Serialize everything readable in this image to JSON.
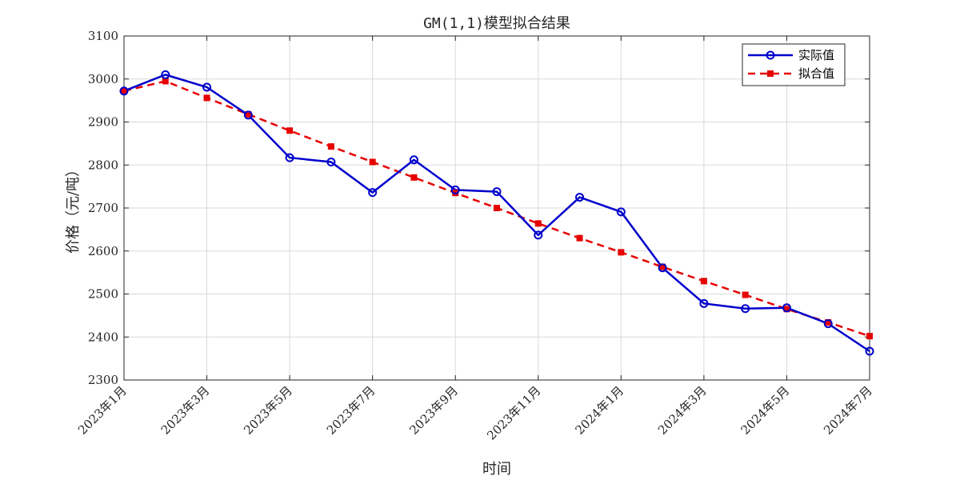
{
  "chart_data": {
    "type": "line",
    "title": "GM(1,1)模型拟合结果",
    "xlabel": "时间",
    "ylabel": "价格（元/吨）",
    "ylim": [
      2300,
      3100
    ],
    "yticks": [
      2300,
      2400,
      2500,
      2600,
      2700,
      2800,
      2900,
      3000,
      3100
    ],
    "x": [
      "2023-01",
      "2023-02",
      "2023-03",
      "2023-04",
      "2023-05",
      "2023-06",
      "2023-07",
      "2023-08",
      "2023-09",
      "2023-10",
      "2023-11",
      "2023-12",
      "2024-01",
      "2024-02",
      "2024-03",
      "2024-04",
      "2024-05",
      "2024-06",
      "2024-07"
    ],
    "xtick_labels": [
      "2023年1月",
      "2023年3月",
      "2023年5月",
      "2023年7月",
      "2023年9月",
      "2023年11月",
      "2024年1月",
      "2024年3月",
      "2024年5月",
      "2024年7月"
    ],
    "grid": true,
    "legend_position": "top-right",
    "series": [
      {
        "name": "实际值",
        "style": "solid line with circle markers",
        "color": "#0000cc",
        "values": [
          2972,
          3010,
          2981,
          2916,
          2817,
          2807,
          2736,
          2812,
          2742,
          2738,
          2637,
          2725,
          2691,
          2561,
          2478,
          2466,
          2468,
          2431,
          2367
        ]
      },
      {
        "name": "拟合值",
        "style": "dashed line with square markers",
        "color": "#e60000",
        "values": [
          2972,
          2995,
          2956,
          2918,
          2880,
          2843,
          2807,
          2771,
          2735,
          2700,
          2664,
          2630,
          2597,
          2563,
          2530,
          2498,
          2465,
          2434,
          2402
        ]
      }
    ]
  }
}
